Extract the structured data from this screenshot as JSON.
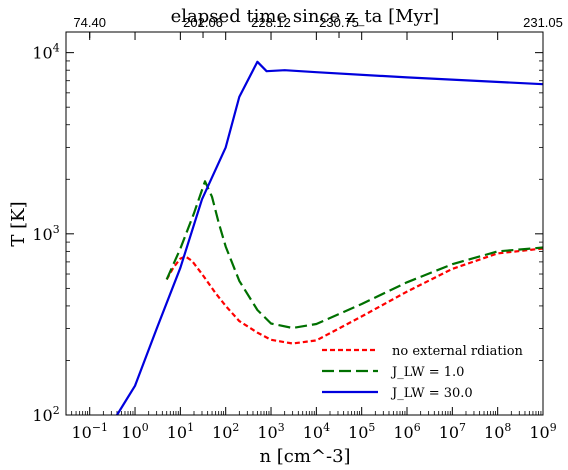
{
  "chart_data": {
    "type": "line",
    "top_axis": {
      "label": "elapsed time since z_ta [Myr]",
      "tick_labels": [
        "74.40",
        "202.06",
        "228.12",
        "230.75",
        "231.05"
      ],
      "tick_x_log10n": [
        -1.0,
        1.5,
        3.0,
        4.5,
        9.0
      ]
    },
    "xlabel": "n [cm^-3]",
    "ylabel": "T [K]",
    "x_scale": "log",
    "y_scale": "log",
    "xlim": [
      0.03,
      1000000000
    ],
    "ylim": [
      100,
      13000
    ],
    "x_ticks": [
      0.1,
      1,
      10,
      100,
      1000,
      10000,
      100000,
      1000000,
      10000000,
      100000000,
      1000000000
    ],
    "y_ticks": [
      100,
      1000,
      10000
    ],
    "legend_position": "lower-right",
    "series": [
      {
        "name": "no external rdiation",
        "color": "#ff0000",
        "style": "dotted",
        "points": [
          [
            5,
            560
          ],
          [
            7,
            650
          ],
          [
            10,
            730
          ],
          [
            13,
            750
          ],
          [
            18,
            710
          ],
          [
            30,
            600
          ],
          [
            60,
            470
          ],
          [
            100,
            400
          ],
          [
            200,
            330
          ],
          [
            500,
            285
          ],
          [
            1000,
            260
          ],
          [
            3000,
            248
          ],
          [
            10000,
            258
          ],
          [
            100000,
            350
          ],
          [
            1000000,
            480
          ],
          [
            10000000,
            640
          ],
          [
            100000000,
            780
          ],
          [
            1000000000,
            830
          ]
        ]
      },
      {
        "name": "J_LW = 1.0",
        "color": "#007000",
        "style": "dashed",
        "points": [
          [
            5,
            560
          ],
          [
            10,
            830
          ],
          [
            20,
            1300
          ],
          [
            35,
            1950
          ],
          [
            50,
            1600
          ],
          [
            70,
            1150
          ],
          [
            100,
            850
          ],
          [
            200,
            550
          ],
          [
            500,
            380
          ],
          [
            1000,
            320
          ],
          [
            3000,
            302
          ],
          [
            10000,
            318
          ],
          [
            100000,
            410
          ],
          [
            1000000,
            540
          ],
          [
            10000000,
            680
          ],
          [
            100000000,
            800
          ],
          [
            1000000000,
            840
          ]
        ]
      },
      {
        "name": "J_LW = 30.0",
        "color": "#0000dd",
        "style": "solid",
        "points": [
          [
            0.4,
            100
          ],
          [
            1,
            145
          ],
          [
            3,
            300
          ],
          [
            10,
            650
          ],
          [
            30,
            1550
          ],
          [
            100,
            3000
          ],
          [
            200,
            5700
          ],
          [
            500,
            8900
          ],
          [
            800,
            7900
          ],
          [
            2000,
            8000
          ],
          [
            10000,
            7800
          ],
          [
            1000000,
            7300
          ],
          [
            1000000000,
            6700
          ]
        ]
      }
    ]
  }
}
